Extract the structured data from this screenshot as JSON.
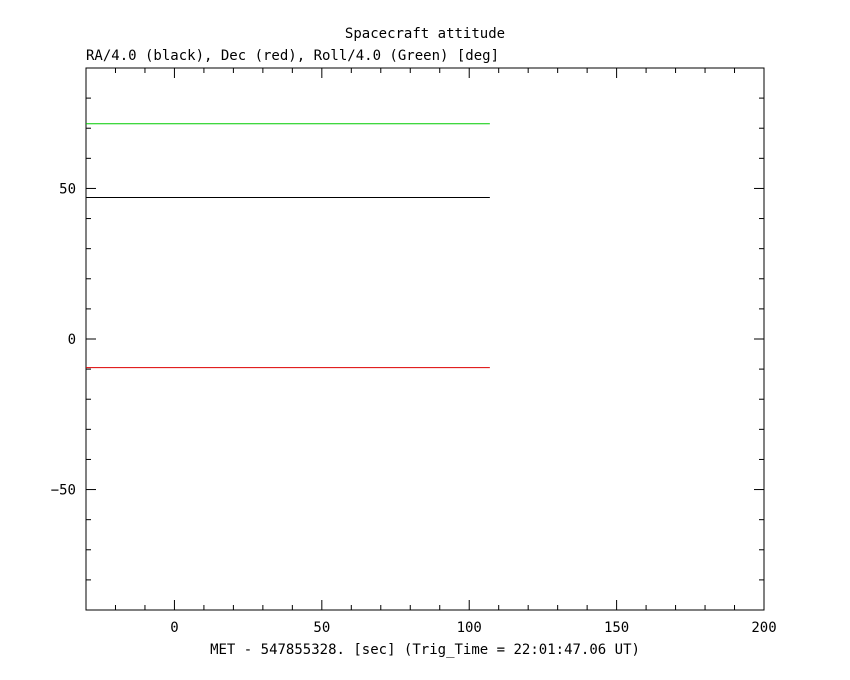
{
  "chart_data": {
    "type": "line",
    "title": "Spacecraft attitude",
    "ylabel": "RA/4.0 (black), Dec (red), Roll/4.0 (Green) [deg]",
    "xlabel": "MET - 547855328. [sec] (Trig_Time = 22:01:47.06 UT)",
    "xlim": [
      -30,
      200
    ],
    "ylim": [
      -90,
      90
    ],
    "x_ticks": [
      0,
      50,
      100,
      150,
      200
    ],
    "x_tick_labels": [
      "0",
      "50",
      "100",
      "150",
      "200"
    ],
    "y_ticks": [
      -50,
      0,
      50
    ],
    "y_tick_labels": [
      "−50",
      "0",
      "50"
    ],
    "grid": false,
    "series": [
      {
        "color": "#00cc00",
        "x": [
          -30,
          107
        ],
        "y": [
          71.5,
          71.5
        ]
      },
      {
        "color": "#000000",
        "x": [
          -30,
          107
        ],
        "y": [
          47,
          47
        ]
      },
      {
        "color": "#dd0000",
        "x": [
          -30,
          107
        ],
        "y": [
          -9.5,
          -9.5
        ]
      }
    ]
  }
}
